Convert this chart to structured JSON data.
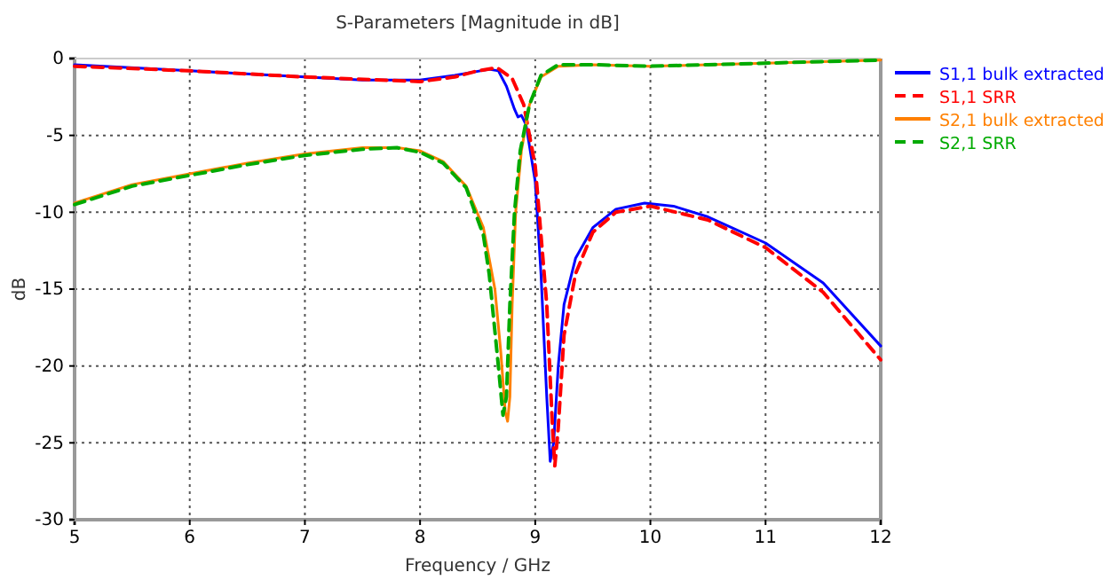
{
  "chart_data": {
    "type": "line",
    "title": "S-Parameters [Magnitude in dB]",
    "xlabel": "Frequency / GHz",
    "ylabel": "dB",
    "xlim": [
      5,
      12
    ],
    "ylim": [
      -30,
      0
    ],
    "xticks": [
      5,
      6,
      7,
      8,
      9,
      10,
      11,
      12
    ],
    "yticks": [
      0,
      -5,
      -10,
      -15,
      -20,
      -25,
      -30
    ],
    "grid": true,
    "legend": "top right",
    "series": [
      {
        "name": "S1,1 bulk extracted",
        "color": "#0000ff",
        "line_style": "solid",
        "x": [
          5,
          6,
          7,
          7.5,
          8,
          8.3,
          8.6,
          8.68,
          8.75,
          8.82,
          8.85,
          8.88,
          8.92,
          9.0,
          9.05,
          9.1,
          9.13,
          9.16,
          9.2,
          9.25,
          9.35,
          9.5,
          9.7,
          9.95,
          10.2,
          10.5,
          11,
          11.5,
          12
        ],
        "values": [
          -0.4,
          -0.8,
          -1.2,
          -1.4,
          -1.4,
          -1.1,
          -0.7,
          -0.8,
          -1.8,
          -3.3,
          -3.8,
          -3.7,
          -4.3,
          -8,
          -14,
          -22,
          -26.2,
          -25,
          -20,
          -16,
          -13,
          -11,
          -9.8,
          -9.4,
          -9.6,
          -10.3,
          -12,
          -14.6,
          -18.7
        ]
      },
      {
        "name": "S1,1 SRR",
        "color": "#ff0000",
        "line_style": "dashed",
        "x": [
          5,
          6,
          7,
          8,
          8.3,
          8.5,
          8.67,
          8.8,
          8.9,
          9.0,
          9.1,
          9.15,
          9.17,
          9.2,
          9.25,
          9.35,
          9.5,
          9.7,
          10,
          10.5,
          11,
          11.5,
          12
        ],
        "values": [
          -0.5,
          -0.8,
          -1.2,
          -1.5,
          -1.2,
          -0.8,
          -0.6,
          -1.3,
          -3,
          -7,
          -16,
          -24,
          -26.5,
          -24,
          -18,
          -14,
          -11.3,
          -10,
          -9.6,
          -10.5,
          -12.3,
          -15.2,
          -19.6
        ]
      },
      {
        "name": "S2,1 bulk extracted",
        "color": "#ff8000",
        "line_style": "solid",
        "x": [
          5,
          5.5,
          6,
          6.5,
          7,
          7.5,
          7.8,
          8,
          8.2,
          8.4,
          8.55,
          8.65,
          8.7,
          8.74,
          8.76,
          8.78,
          8.8,
          8.83,
          8.88,
          8.95,
          9.05,
          9.2,
          9.5,
          10,
          10.5,
          11,
          12
        ],
        "values": [
          -9.4,
          -8.2,
          -7.5,
          -6.8,
          -6.2,
          -5.8,
          -5.8,
          -6.0,
          -6.7,
          -8.3,
          -11,
          -15,
          -19,
          -23,
          -23.6,
          -22,
          -16,
          -10,
          -6,
          -3,
          -1.2,
          -0.5,
          -0.4,
          -0.5,
          -0.4,
          -0.3,
          -0.1
        ]
      },
      {
        "name": "S2,1 SRR",
        "color": "#00aa00",
        "line_style": "dashed",
        "x": [
          5,
          5.5,
          6,
          6.5,
          7,
          7.5,
          7.8,
          8,
          8.2,
          8.4,
          8.55,
          8.6,
          8.68,
          8.72,
          8.75,
          8.78,
          8.82,
          8.87,
          8.95,
          9.05,
          9.2,
          9.5,
          10,
          10.5,
          11,
          12
        ],
        "values": [
          -9.5,
          -8.3,
          -7.6,
          -6.9,
          -6.3,
          -5.9,
          -5.8,
          -6.1,
          -6.8,
          -8.4,
          -11.5,
          -14,
          -20,
          -23.2,
          -22,
          -16,
          -10,
          -6,
          -3,
          -1.1,
          -0.4,
          -0.4,
          -0.5,
          -0.4,
          -0.3,
          -0.1
        ]
      }
    ]
  }
}
